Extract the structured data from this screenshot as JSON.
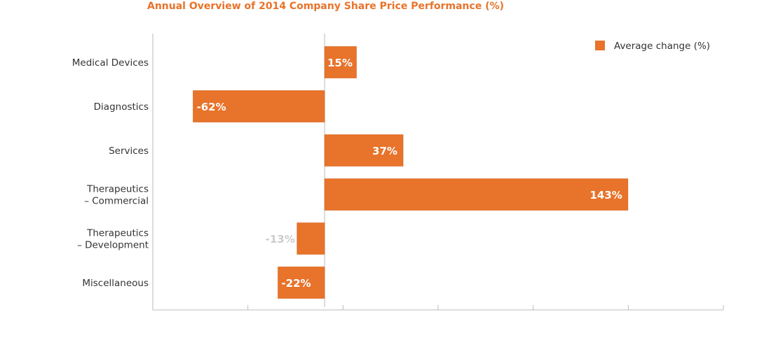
{
  "chart_data": {
    "type": "bar",
    "orientation": "horizontal",
    "title": "Annual Overview of 2014 Company Share Price Performance (%)",
    "categories": [
      [
        "Medical Devices"
      ],
      [
        "Diagnostics"
      ],
      [
        "Services"
      ],
      [
        "Therapeutics",
        "– Commercial"
      ],
      [
        "Therapeutics",
        "– Development"
      ],
      [
        "Miscellaneous"
      ]
    ],
    "series": [
      {
        "name": "Average change (%)",
        "color": "#e8732a",
        "values": [
          15,
          -62,
          37,
          143,
          -13,
          -22
        ],
        "labels": [
          "15%",
          "-62%",
          "37%",
          "143%",
          "-13%",
          "-22%"
        ]
      }
    ],
    "xlim": [
      -81,
      188
    ],
    "xlabel": "",
    "ylabel": "",
    "legend": "top-right",
    "label_color": "#ffffff",
    "muted_label_color": "#cccccc",
    "axis_color": "#bbbbbb"
  }
}
